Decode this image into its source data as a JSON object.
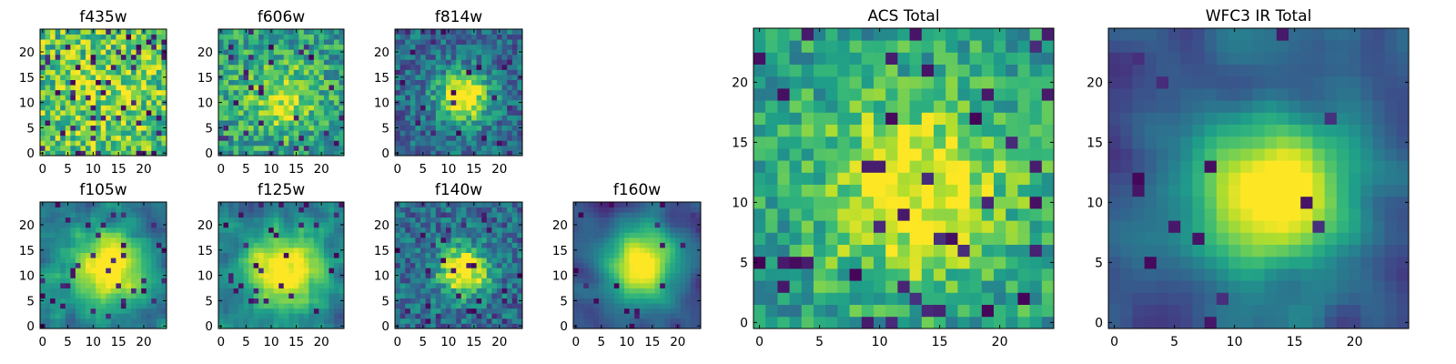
{
  "figure_title": "",
  "chart_data": [
    {
      "type": "heatmap",
      "title": "f435w",
      "grid_size": [
        25,
        25
      ],
      "xlim": [
        0,
        25
      ],
      "ylim": [
        0,
        25
      ],
      "x_ticks": [
        0,
        5,
        10,
        15,
        20
      ],
      "y_ticks": [
        0,
        5,
        10,
        15,
        20
      ],
      "colormap": "viridis",
      "pattern": "uniform-noise",
      "center": [
        12,
        11
      ]
    },
    {
      "type": "heatmap",
      "title": "f606w",
      "grid_size": [
        25,
        25
      ],
      "xlim": [
        0,
        25
      ],
      "ylim": [
        0,
        25
      ],
      "x_ticks": [
        0,
        5,
        10,
        15,
        20
      ],
      "y_ticks": [
        0,
        5,
        10,
        15,
        20
      ],
      "colormap": "viridis",
      "pattern": "weak-source",
      "center": [
        12,
        11
      ]
    },
    {
      "type": "heatmap",
      "title": "f814w",
      "grid_size": [
        25,
        25
      ],
      "xlim": [
        0,
        25
      ],
      "ylim": [
        0,
        25
      ],
      "x_ticks": [
        0,
        5,
        10,
        15,
        20
      ],
      "y_ticks": [
        0,
        5,
        10,
        15,
        20
      ],
      "colormap": "viridis",
      "pattern": "compact-source",
      "center": [
        13,
        11
      ]
    },
    {
      "type": "heatmap",
      "title": "f105w",
      "grid_size": [
        25,
        25
      ],
      "xlim": [
        0,
        25
      ],
      "ylim": [
        0,
        25
      ],
      "x_ticks": [
        0,
        5,
        10,
        15,
        20
      ],
      "y_ticks": [
        0,
        5,
        10,
        15,
        20
      ],
      "colormap": "viridis",
      "pattern": "extended-source",
      "center": [
        13,
        11
      ]
    },
    {
      "type": "heatmap",
      "title": "f125w",
      "grid_size": [
        25,
        25
      ],
      "xlim": [
        0,
        25
      ],
      "ylim": [
        0,
        25
      ],
      "x_ticks": [
        0,
        5,
        10,
        15,
        20
      ],
      "y_ticks": [
        0,
        5,
        10,
        15,
        20
      ],
      "colormap": "viridis",
      "pattern": "extended-source",
      "center": [
        13,
        11
      ]
    },
    {
      "type": "heatmap",
      "title": "f140w",
      "grid_size": [
        25,
        25
      ],
      "xlim": [
        0,
        25
      ],
      "ylim": [
        0,
        25
      ],
      "x_ticks": [
        0,
        5,
        10,
        15,
        20
      ],
      "y_ticks": [
        0,
        5,
        10,
        15,
        20
      ],
      "colormap": "viridis",
      "pattern": "compact-source",
      "center": [
        13,
        11
      ]
    },
    {
      "type": "heatmap",
      "title": "f160w",
      "grid_size": [
        25,
        25
      ],
      "xlim": [
        0,
        25
      ],
      "ylim": [
        0,
        25
      ],
      "x_ticks": [
        0,
        5,
        10,
        15,
        20
      ],
      "y_ticks": [
        0,
        5,
        10,
        15,
        20
      ],
      "colormap": "viridis",
      "pattern": "smooth-source",
      "center": [
        13,
        12
      ]
    },
    {
      "type": "heatmap",
      "title": "ACS Total",
      "grid_size": [
        25,
        25
      ],
      "xlim": [
        0,
        25
      ],
      "ylim": [
        0,
        25
      ],
      "x_ticks": [
        0,
        5,
        10,
        15,
        20
      ],
      "y_ticks": [
        0,
        5,
        10,
        15,
        20
      ],
      "colormap": "viridis",
      "pattern": "noisy-source",
      "center": [
        13,
        11
      ]
    },
    {
      "type": "heatmap",
      "title": "WFC3 IR Total",
      "grid_size": [
        25,
        25
      ],
      "xlim": [
        0,
        25
      ],
      "ylim": [
        0,
        25
      ],
      "x_ticks": [
        0,
        5,
        10,
        15,
        20
      ],
      "y_ticks": [
        0,
        5,
        10,
        15,
        20
      ],
      "colormap": "viridis",
      "pattern": "smooth-source",
      "center": [
        13,
        11
      ]
    }
  ]
}
